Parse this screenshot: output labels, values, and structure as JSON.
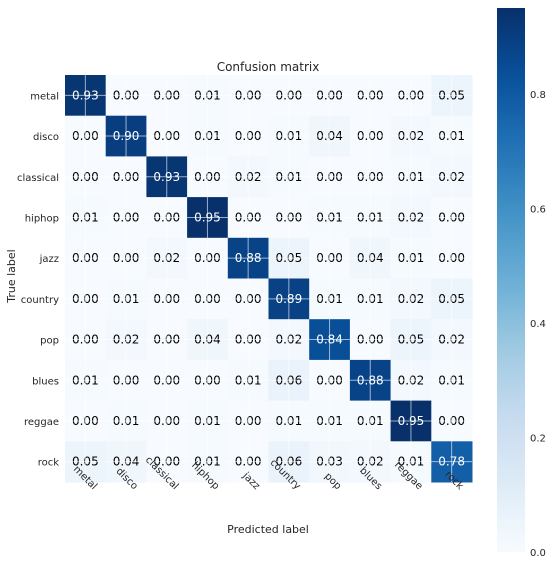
{
  "chart_data": {
    "type": "heatmap",
    "title": "Confusion matrix",
    "xlabel": "Predicted label",
    "ylabel": "True label",
    "row_labels": [
      "metal",
      "disco",
      "classical",
      "hiphop",
      "jazz",
      "country",
      "pop",
      "blues",
      "reggae",
      "rock"
    ],
    "col_labels": [
      "metal",
      "disco",
      "classical",
      "hiphop",
      "jazz",
      "country",
      "pop",
      "blues",
      "reggae",
      "rock"
    ],
    "values": [
      [
        "0.93",
        "0.00",
        "0.00",
        "0.01",
        "0.00",
        "0.00",
        "0.00",
        "0.00",
        "0.00",
        "0.05"
      ],
      [
        "0.00",
        "0.90",
        "0.00",
        "0.01",
        "0.00",
        "0.01",
        "0.04",
        "0.00",
        "0.02",
        "0.01"
      ],
      [
        "0.00",
        "0.00",
        "0.93",
        "0.00",
        "0.02",
        "0.01",
        "0.00",
        "0.00",
        "0.01",
        "0.02"
      ],
      [
        "0.01",
        "0.00",
        "0.00",
        "0.95",
        "0.00",
        "0.00",
        "0.01",
        "0.01",
        "0.02",
        "0.00"
      ],
      [
        "0.00",
        "0.00",
        "0.02",
        "0.00",
        "0.88",
        "0.05",
        "0.00",
        "0.04",
        "0.01",
        "0.00"
      ],
      [
        "0.00",
        "0.01",
        "0.00",
        "0.00",
        "0.00",
        "0.89",
        "0.01",
        "0.01",
        "0.02",
        "0.05"
      ],
      [
        "0.00",
        "0.02",
        "0.00",
        "0.04",
        "0.00",
        "0.02",
        "0.84",
        "0.00",
        "0.05",
        "0.02"
      ],
      [
        "0.01",
        "0.00",
        "0.00",
        "0.00",
        "0.01",
        "0.06",
        "0.00",
        "0.88",
        "0.02",
        "0.01"
      ],
      [
        "0.00",
        "0.01",
        "0.00",
        "0.01",
        "0.00",
        "0.01",
        "0.01",
        "0.01",
        "0.95",
        "0.00"
      ],
      [
        "0.05",
        "0.04",
        "0.00",
        "0.01",
        "0.00",
        "0.06",
        "0.03",
        "0.02",
        "0.01",
        "0.78"
      ]
    ],
    "vmin": 0.0,
    "vmax": 0.95,
    "colormap": "Blues",
    "colorbar_ticks": [
      "0.0",
      "0.2",
      "0.4",
      "0.6",
      "0.8"
    ],
    "grid": true
  }
}
